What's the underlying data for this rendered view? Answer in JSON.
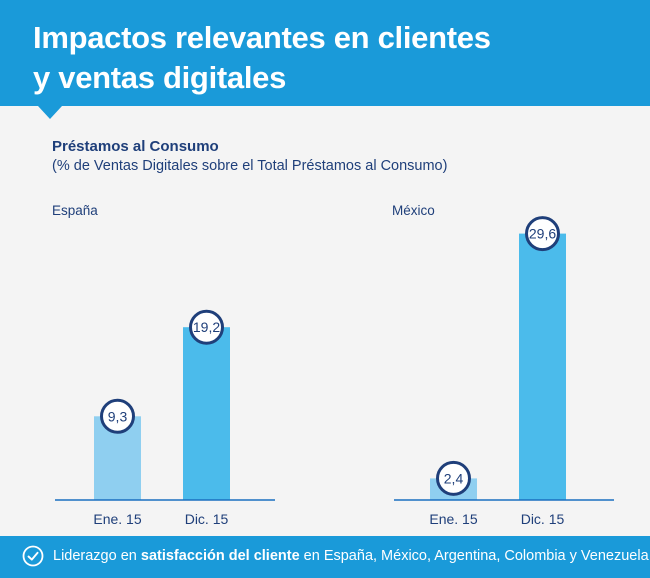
{
  "header": {
    "title_line1": "Impactos relevantes en clientes",
    "title_line2": "y ventas digitales"
  },
  "chart": {
    "title": "Préstamos al Consumo",
    "subtitle": "(% de Ventas Digitales sobre el Total Préstamos al Consumo)"
  },
  "footer": {
    "icon": "check-circle-icon",
    "text_prefix": "Liderazgo en ",
    "text_bold": "satisfacción del cliente",
    "text_suffix": " en España, México, Argentina, Colombia y Venezuela"
  },
  "colors": {
    "header_bg": "#1a9ad9",
    "bar_first": "#8fcff0",
    "bar_second": "#4bbbeb",
    "label_ring": "#1f3f7a"
  },
  "chart_data": [
    {
      "type": "bar",
      "title": "España",
      "categories": [
        "Ene. 15",
        "Dic. 15"
      ],
      "values": [
        9.3,
        19.2
      ],
      "value_labels": [
        "9,3",
        "19,2"
      ],
      "ylim": [
        0,
        30
      ]
    },
    {
      "type": "bar",
      "title": "México",
      "categories": [
        "Ene. 15",
        "Dic. 15"
      ],
      "values": [
        2.4,
        29.6
      ],
      "value_labels": [
        "2,4",
        "29,6"
      ],
      "ylim": [
        0,
        30
      ]
    }
  ]
}
